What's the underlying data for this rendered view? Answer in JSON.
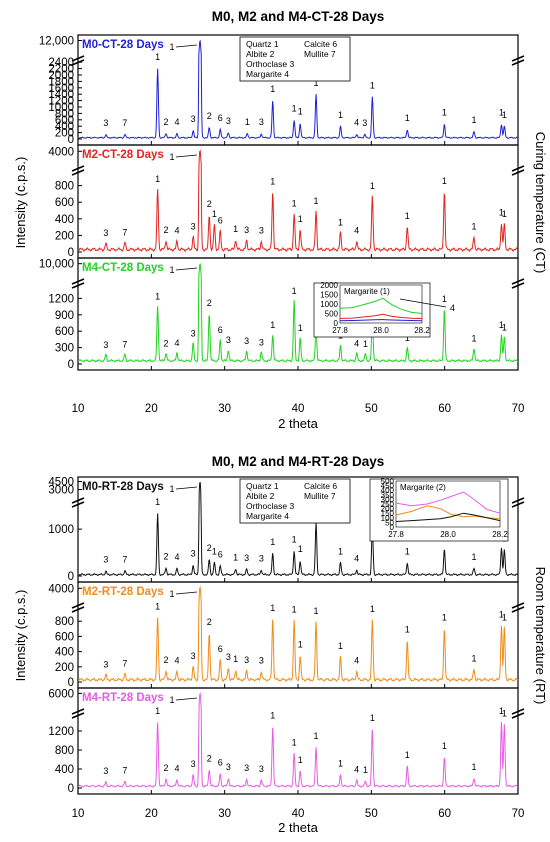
{
  "chart_data": [
    {
      "type": "line",
      "title": "M0, M2 and M4-CT-28 Days",
      "xlabel": "2 theta",
      "ylabel": "Intensity (c.p.s.)",
      "side_label": "Curing temperature (CT)",
      "xlim": [
        10,
        70
      ],
      "x_ticks": [
        "10",
        "20",
        "30",
        "40",
        "50",
        "60",
        "70"
      ],
      "legend": [
        "Quartz 1",
        "Calcite 6",
        "Albite 2",
        "Mullite 7",
        "Orthoclase 3",
        "Margarite 4"
      ],
      "panels": [
        {
          "name": "M0-CT-28 Days",
          "color": "#1f1fd6",
          "y_ticks_low": [
            "0",
            "200",
            "400",
            "600",
            "800",
            "1000",
            "1200",
            "1400",
            "1600",
            "1800",
            "2000",
            "2200",
            "2400"
          ],
          "y_ticks_high": [
            "12,000"
          ],
          "baseline": 40,
          "break_at": 2500,
          "top_value": 13000,
          "peaks": [
            {
              "x": 20.86,
              "y": 2150
            },
            {
              "x": 26.64,
              "y": 12000
            },
            {
              "x": 36.55,
              "y": 1150
            },
            {
              "x": 39.47,
              "y": 550
            },
            {
              "x": 40.3,
              "y": 450
            },
            {
              "x": 42.46,
              "y": 1350
            },
            {
              "x": 45.8,
              "y": 350
            },
            {
              "x": 50.14,
              "y": 1270
            },
            {
              "x": 54.9,
              "y": 250
            },
            {
              "x": 59.96,
              "y": 420
            },
            {
              "x": 64.0,
              "y": 180
            },
            {
              "x": 67.74,
              "y": 420
            },
            {
              "x": 68.14,
              "y": 350
            },
            {
              "x": 22.0,
              "y": 130
            },
            {
              "x": 23.5,
              "y": 120
            },
            {
              "x": 25.7,
              "y": 220
            },
            {
              "x": 27.9,
              "y": 320
            },
            {
              "x": 29.4,
              "y": 250
            },
            {
              "x": 30.5,
              "y": 150
            },
            {
              "x": 13.8,
              "y": 90
            },
            {
              "x": 16.4,
              "y": 100
            },
            {
              "x": 33.1,
              "y": 130
            },
            {
              "x": 35.0,
              "y": 120
            },
            {
              "x": 48.0,
              "y": 110
            },
            {
              "x": 49.1,
              "y": 100
            }
          ]
        },
        {
          "name": "M2-CT-28 Days",
          "color": "#e3231f",
          "y_ticks_low": [
            "0",
            "200",
            "400",
            "600",
            "800"
          ],
          "y_ticks_high": [
            "4000"
          ],
          "baseline": 30,
          "break_at": 1000,
          "top_value": 4500,
          "peaks": [
            {
              "x": 20.86,
              "y": 720
            },
            {
              "x": 26.64,
              "y": 4200
            },
            {
              "x": 36.55,
              "y": 690
            },
            {
              "x": 39.47,
              "y": 430
            },
            {
              "x": 40.3,
              "y": 240
            },
            {
              "x": 42.46,
              "y": 460
            },
            {
              "x": 45.8,
              "y": 200
            },
            {
              "x": 50.14,
              "y": 640
            },
            {
              "x": 54.9,
              "y": 280
            },
            {
              "x": 59.96,
              "y": 700
            },
            {
              "x": 64.0,
              "y": 150
            },
            {
              "x": 67.74,
              "y": 320
            },
            {
              "x": 68.14,
              "y": 300
            },
            {
              "x": 22.0,
              "y": 110
            },
            {
              "x": 23.5,
              "y": 100
            },
            {
              "x": 25.7,
              "y": 150
            },
            {
              "x": 27.9,
              "y": 420
            },
            {
              "x": 28.6,
              "y": 300
            },
            {
              "x": 29.4,
              "y": 220
            },
            {
              "x": 13.8,
              "y": 70
            },
            {
              "x": 16.4,
              "y": 80
            },
            {
              "x": 31.5,
              "y": 120
            },
            {
              "x": 33.0,
              "y": 110
            },
            {
              "x": 35.0,
              "y": 100
            },
            {
              "x": 48.0,
              "y": 100
            }
          ]
        },
        {
          "name": "M4-CT-28 Days",
          "color": "#22d322",
          "y_ticks_low": [
            "0",
            "300",
            "600",
            "900",
            "1200"
          ],
          "y_ticks_high": [
            "10,000"
          ],
          "baseline": 60,
          "break_at": 1500,
          "top_value": 11000,
          "peaks": [
            {
              "x": 20.86,
              "y": 1000
            },
            {
              "x": 26.64,
              "y": 10000
            },
            {
              "x": 36.55,
              "y": 480
            },
            {
              "x": 39.47,
              "y": 1100
            },
            {
              "x": 40.3,
              "y": 420
            },
            {
              "x": 42.46,
              "y": 620
            },
            {
              "x": 45.8,
              "y": 280
            },
            {
              "x": 50.14,
              "y": 850
            },
            {
              "x": 54.9,
              "y": 240
            },
            {
              "x": 59.96,
              "y": 950
            },
            {
              "x": 64.0,
              "y": 230
            },
            {
              "x": 67.74,
              "y": 480
            },
            {
              "x": 68.14,
              "y": 430
            },
            {
              "x": 22.0,
              "y": 140
            },
            {
              "x": 23.5,
              "y": 150
            },
            {
              "x": 25.7,
              "y": 320
            },
            {
              "x": 27.9,
              "y": 880
            },
            {
              "x": 29.4,
              "y": 380
            },
            {
              "x": 30.5,
              "y": 200
            },
            {
              "x": 13.8,
              "y": 110
            },
            {
              "x": 16.4,
              "y": 120
            },
            {
              "x": 33.0,
              "y": 180
            },
            {
              "x": 35.0,
              "y": 160
            },
            {
              "x": 48.0,
              "y": 140
            },
            {
              "x": 49.2,
              "y": 130
            }
          ]
        }
      ],
      "inset": {
        "title": "Margarite (1)",
        "xlim": [
          27.8,
          28.2
        ],
        "x_ticks": [
          "27.8",
          "28.0",
          "28.2"
        ],
        "y_ticks": [
          "0",
          "500",
          "1000",
          "1500",
          "2000"
        ],
        "ylim": [
          0,
          2000
        ],
        "arrow_label": "4",
        "series": [
          {
            "color": "#22d322",
            "x": [
              27.8,
              27.86,
              27.92,
              27.97,
              28.01,
              28.05,
              28.1,
              28.15,
              28.2
            ],
            "y": [
              780,
              810,
              980,
              1130,
              1300,
              980,
              720,
              560,
              500
            ]
          },
          {
            "color": "#e3231f",
            "x": [
              27.8,
              27.86,
              27.92,
              27.97,
              28.01,
              28.05,
              28.1,
              28.15,
              28.2
            ],
            "y": [
              240,
              260,
              320,
              380,
              460,
              360,
              290,
              250,
              230
            ]
          },
          {
            "color": "#1f1fd6",
            "x": [
              27.8,
              27.86,
              27.92,
              27.97,
              28.01,
              28.05,
              28.1,
              28.15,
              28.2
            ],
            "y": [
              120,
              130,
              150,
              170,
              180,
              160,
              140,
              130,
              120
            ]
          }
        ]
      }
    },
    {
      "type": "line",
      "title": "M0, M2 and M4-RT-28 Days",
      "xlabel": "2 theta",
      "ylabel": "Intensity (c.p.s.)",
      "side_label": "Room temperature (RT)",
      "xlim": [
        10,
        70
      ],
      "x_ticks": [
        "10",
        "20",
        "30",
        "40",
        "50",
        "60",
        "70"
      ],
      "legend": [
        "Quartz 1",
        "Calcite 6",
        "Albite 2",
        "Mullite 7",
        "Orthoclase 3",
        "Margarite 4"
      ],
      "panels": [
        {
          "name": "M0-RT-28 Days",
          "color": "#111111",
          "y_ticks_low": [
            "0",
            "1000"
          ],
          "y_ticks_high": [
            "3000",
            "4500"
          ],
          "baseline": 30,
          "break_at": 1600,
          "top_value": 4600,
          "peaks": [
            {
              "x": 20.86,
              "y": 1300
            },
            {
              "x": 26.64,
              "y": 4500
            },
            {
              "x": 36.55,
              "y": 450
            },
            {
              "x": 39.47,
              "y": 500
            },
            {
              "x": 40.3,
              "y": 300
            },
            {
              "x": 42.46,
              "y": 1100
            },
            {
              "x": 45.8,
              "y": 250
            },
            {
              "x": 50.14,
              "y": 1000
            },
            {
              "x": 54.9,
              "y": 250
            },
            {
              "x": 59.96,
              "y": 550
            },
            {
              "x": 64.0,
              "y": 130
            },
            {
              "x": 67.74,
              "y": 580
            },
            {
              "x": 68.14,
              "y": 520
            },
            {
              "x": 22.0,
              "y": 140
            },
            {
              "x": 23.5,
              "y": 130
            },
            {
              "x": 25.7,
              "y": 200
            },
            {
              "x": 27.9,
              "y": 320
            },
            {
              "x": 28.6,
              "y": 250
            },
            {
              "x": 29.4,
              "y": 180
            },
            {
              "x": 13.8,
              "y": 70
            },
            {
              "x": 16.4,
              "y": 80
            },
            {
              "x": 31.5,
              "y": 120
            },
            {
              "x": 33.0,
              "y": 110
            },
            {
              "x": 35.0,
              "y": 100
            },
            {
              "x": 48.0,
              "y": 100
            }
          ]
        },
        {
          "name": "M2-RT-28 Days",
          "color": "#f28c1a",
          "y_ticks_low": [
            "0",
            "200",
            "400",
            "600",
            "800"
          ],
          "y_ticks_high": [
            "4000"
          ],
          "baseline": 30,
          "break_at": 1000,
          "top_value": 4500,
          "peaks": [
            {
              "x": 20.86,
              "y": 820
            },
            {
              "x": 26.64,
              "y": 4300
            },
            {
              "x": 36.55,
              "y": 800
            },
            {
              "x": 39.47,
              "y": 780
            },
            {
              "x": 40.3,
              "y": 320
            },
            {
              "x": 42.46,
              "y": 760
            },
            {
              "x": 45.8,
              "y": 300
            },
            {
              "x": 50.14,
              "y": 790
            },
            {
              "x": 54.9,
              "y": 520
            },
            {
              "x": 59.96,
              "y": 680
            },
            {
              "x": 64.0,
              "y": 140
            },
            {
              "x": 67.74,
              "y": 720
            },
            {
              "x": 68.14,
              "y": 680
            },
            {
              "x": 22.0,
              "y": 120
            },
            {
              "x": 23.5,
              "y": 110
            },
            {
              "x": 25.7,
              "y": 170
            },
            {
              "x": 27.9,
              "y": 620
            },
            {
              "x": 29.4,
              "y": 260
            },
            {
              "x": 30.5,
              "y": 160
            },
            {
              "x": 13.8,
              "y": 60
            },
            {
              "x": 16.4,
              "y": 70
            },
            {
              "x": 31.5,
              "y": 130
            },
            {
              "x": 33.0,
              "y": 120
            },
            {
              "x": 35.0,
              "y": 110
            },
            {
              "x": 48.0,
              "y": 110
            }
          ]
        },
        {
          "name": "M4-RT-28 Days",
          "color": "#e65ce6",
          "y_ticks_low": [
            "0",
            "400",
            "800",
            "1200"
          ],
          "y_ticks_high": [
            "6000"
          ],
          "baseline": 40,
          "break_at": 1600,
          "top_value": 6400,
          "peaks": [
            {
              "x": 20.86,
              "y": 1350
            },
            {
              "x": 26.64,
              "y": 6000
            },
            {
              "x": 36.55,
              "y": 1250
            },
            {
              "x": 39.47,
              "y": 680
            },
            {
              "x": 40.3,
              "y": 320
            },
            {
              "x": 42.46,
              "y": 820
            },
            {
              "x": 45.8,
              "y": 240
            },
            {
              "x": 50.14,
              "y": 1200
            },
            {
              "x": 54.9,
              "y": 420
            },
            {
              "x": 59.96,
              "y": 610
            },
            {
              "x": 64.0,
              "y": 170
            },
            {
              "x": 67.74,
              "y": 1350
            },
            {
              "x": 68.14,
              "y": 1300
            },
            {
              "x": 22.0,
              "y": 150
            },
            {
              "x": 23.5,
              "y": 140
            },
            {
              "x": 25.7,
              "y": 230
            },
            {
              "x": 27.9,
              "y": 350
            },
            {
              "x": 29.4,
              "y": 260
            },
            {
              "x": 30.5,
              "y": 170
            },
            {
              "x": 13.8,
              "y": 80
            },
            {
              "x": 16.4,
              "y": 90
            },
            {
              "x": 33.0,
              "y": 150
            },
            {
              "x": 35.0,
              "y": 130
            },
            {
              "x": 48.0,
              "y": 120
            },
            {
              "x": 49.2,
              "y": 110
            }
          ]
        }
      ],
      "inset": {
        "title": "Margarite (2)",
        "xlim": [
          27.8,
          28.2
        ],
        "x_ticks": [
          "27.8",
          "28.0",
          "28.2"
        ],
        "y_ticks": [
          "0",
          "50",
          "100",
          "150",
          "200",
          "250",
          "300",
          "350",
          "400",
          "450",
          "500"
        ],
        "ylim": [
          0,
          500
        ],
        "arrow_label": "",
        "series": [
          {
            "color": "#e65ce6",
            "x": [
              27.8,
              27.86,
              27.92,
              27.97,
              28.01,
              28.06,
              28.1,
              28.15,
              28.2
            ],
            "y": [
              260,
              230,
              250,
              290,
              330,
              380,
              300,
              190,
              150
            ]
          },
          {
            "color": "#f28c1a",
            "x": [
              27.8,
              27.86,
              27.92,
              27.97,
              28.01,
              28.06,
              28.1,
              28.15,
              28.2
            ],
            "y": [
              130,
              170,
              230,
              200,
              140,
              110,
              120,
              100,
              90
            ]
          },
          {
            "color": "#111111",
            "x": [
              27.8,
              27.86,
              27.92,
              27.97,
              28.01,
              28.06,
              28.1,
              28.15,
              28.2
            ],
            "y": [
              60,
              70,
              80,
              90,
              110,
              150,
              130,
              100,
              70
            ]
          }
        ]
      }
    }
  ]
}
